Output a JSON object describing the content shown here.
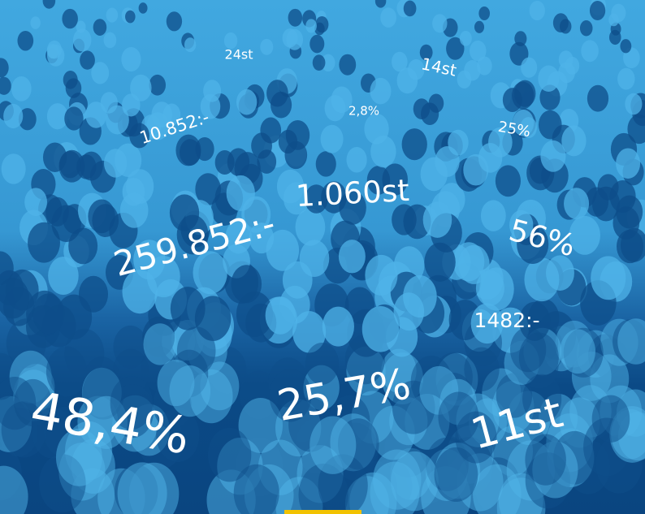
{
  "labels": [
    "24st",
    "14st",
    "10.852:-",
    "2,8%",
    "25%",
    "1.060st",
    "259.852:-",
    "56%",
    "1482:-",
    "48,4%",
    "25,7%",
    "11st"
  ]
}
